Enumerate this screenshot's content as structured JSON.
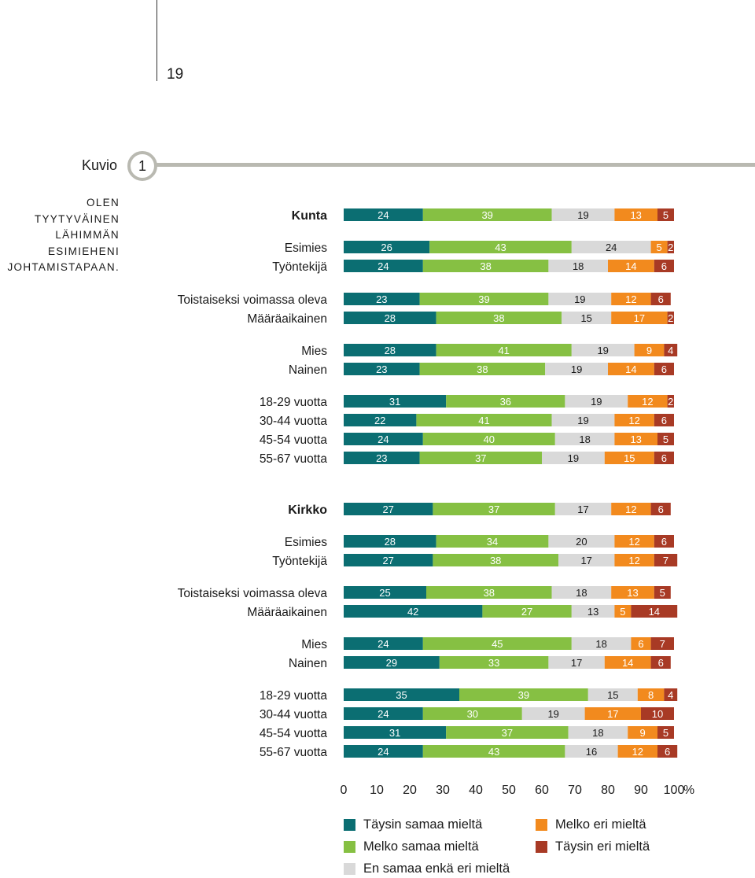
{
  "page": {
    "number": "19"
  },
  "figure": {
    "label": "Kuvio",
    "number": "1"
  },
  "side_title_lines": [
    "OLEN TYYTYVÄINEN",
    "LÄHIMMÄN",
    "ESIMIEHENI",
    "JOHTAMISTAPAAN."
  ],
  "colors": {
    "teal": "#0b6e72",
    "green": "#86c043",
    "grey": "#d9d9d9",
    "orange": "#f28a1e",
    "darkred": "#a83a25",
    "accent_line": "#b9b9b1"
  },
  "chart_data": {
    "type": "bar",
    "orientation": "horizontal",
    "stacked": true,
    "x_ticks": [
      "0",
      "10",
      "20",
      "30",
      "40",
      "50",
      "60",
      "70",
      "80",
      "90",
      "100"
    ],
    "x_unit": "%",
    "xlim": [
      0,
      100
    ],
    "series": [
      {
        "name": "Täysin samaa mieltä",
        "color": "#0b6e72"
      },
      {
        "name": "Melko samaa mieltä",
        "color": "#86c043"
      },
      {
        "name": "En samaa enkä eri mieltä",
        "color": "#d9d9d9"
      },
      {
        "name": "Melko eri mieltä",
        "color": "#f28a1e"
      },
      {
        "name": "Täysin eri mieltä",
        "color": "#a83a25"
      }
    ],
    "rows": [
      {
        "label": "Kunta",
        "bold": true,
        "values": [
          24,
          39,
          19,
          13,
          5
        ]
      },
      {
        "label": "Esimies",
        "values": [
          26,
          43,
          24,
          5,
          2
        ]
      },
      {
        "label": "Työntekijä",
        "values": [
          24,
          38,
          18,
          14,
          6
        ]
      },
      {
        "label": "Toistaiseksi voimassa oleva",
        "values": [
          23,
          39,
          19,
          12,
          6
        ]
      },
      {
        "label": "Määräaikainen",
        "values": [
          28,
          38,
          15,
          17,
          2
        ]
      },
      {
        "label": "Mies",
        "values": [
          28,
          41,
          19,
          9,
          4
        ]
      },
      {
        "label": "Nainen",
        "values": [
          23,
          38,
          19,
          14,
          6
        ]
      },
      {
        "label": "18-29 vuotta",
        "values": [
          31,
          36,
          19,
          12,
          2
        ]
      },
      {
        "label": "30-44 vuotta",
        "values": [
          22,
          41,
          19,
          12,
          6
        ]
      },
      {
        "label": "45-54 vuotta",
        "values": [
          24,
          40,
          18,
          13,
          5
        ]
      },
      {
        "label": "55-67 vuotta",
        "values": [
          23,
          37,
          19,
          15,
          6
        ]
      },
      {
        "label": "Kirkko",
        "bold": true,
        "values": [
          27,
          37,
          17,
          12,
          6
        ]
      },
      {
        "label": "Esimies",
        "values": [
          28,
          34,
          20,
          12,
          6
        ]
      },
      {
        "label": "Työntekijä",
        "values": [
          27,
          38,
          17,
          12,
          7
        ]
      },
      {
        "label": "Toistaiseksi voimassa oleva",
        "values": [
          25,
          38,
          18,
          13,
          5
        ]
      },
      {
        "label": "Määräaikainen",
        "values": [
          42,
          27,
          13,
          5,
          14
        ]
      },
      {
        "label": "Mies",
        "values": [
          24,
          45,
          18,
          6,
          7
        ]
      },
      {
        "label": "Nainen",
        "values": [
          29,
          33,
          17,
          14,
          6
        ]
      },
      {
        "label": "18-29 vuotta",
        "values": [
          35,
          39,
          15,
          8,
          4
        ]
      },
      {
        "label": "30-44 vuotta",
        "values": [
          24,
          30,
          19,
          17,
          10
        ]
      },
      {
        "label": "45-54 vuotta",
        "values": [
          31,
          37,
          18,
          9,
          5
        ]
      },
      {
        "label": "55-67 vuotta",
        "values": [
          24,
          43,
          16,
          12,
          6
        ]
      }
    ]
  }
}
